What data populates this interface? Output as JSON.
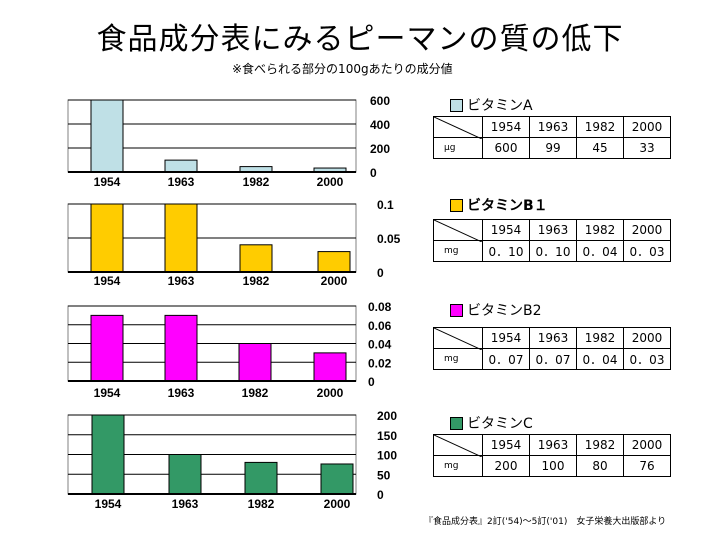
{
  "title": "食品成分表にみるピーマンの質の低下",
  "subtitle": "※食べられる部分の100gあたりの成分値",
  "source": "『食品成分表』2訂('54)～5訂('01)　女子栄養大出版部より",
  "chart_data": [
    {
      "type": "bar",
      "name": "ビタミンA",
      "color": "#bfe0e6",
      "categories": [
        "1954",
        "1963",
        "1982",
        "2000"
      ],
      "values": [
        600,
        99,
        45,
        33
      ],
      "ylim": [
        0,
        600
      ],
      "ticks": [
        "600",
        "400",
        "200",
        "0"
      ],
      "unit": "μg",
      "display": [
        "600",
        "99",
        "45",
        "33"
      ]
    },
    {
      "type": "bar",
      "name": "ビタミンB１",
      "color": "#ffcc00",
      "categories": [
        "1954",
        "1963",
        "1982",
        "2000"
      ],
      "values": [
        0.1,
        0.1,
        0.04,
        0.03
      ],
      "ylim": [
        0,
        0.1
      ],
      "ticks": [
        "0.1",
        "0.05",
        "0"
      ],
      "unit": "mg",
      "display": [
        "0．10",
        "0．10",
        "0．04",
        "0．03"
      ]
    },
    {
      "type": "bar",
      "name": "ビタミンB2",
      "color": "#ff00ff",
      "categories": [
        "1954",
        "1963",
        "1982",
        "2000"
      ],
      "values": [
        0.07,
        0.07,
        0.04,
        0.03
      ],
      "ylim": [
        0,
        0.08
      ],
      "ticks": [
        "0.08",
        "0.06",
        "0.04",
        "0.02",
        "0"
      ],
      "unit": "mg",
      "display": [
        "0．07",
        "0．07",
        "0．04",
        "0．03"
      ]
    },
    {
      "type": "bar",
      "name": "ビタミンC",
      "color": "#339966",
      "categories": [
        "1954",
        "1963",
        "1982",
        "2000"
      ],
      "values": [
        200,
        100,
        80,
        76
      ],
      "ylim": [
        0,
        200
      ],
      "ticks": [
        "200",
        "150",
        "100",
        "50",
        "0"
      ],
      "unit": "mg",
      "display": [
        "200",
        "100",
        "80",
        "76"
      ]
    }
  ]
}
